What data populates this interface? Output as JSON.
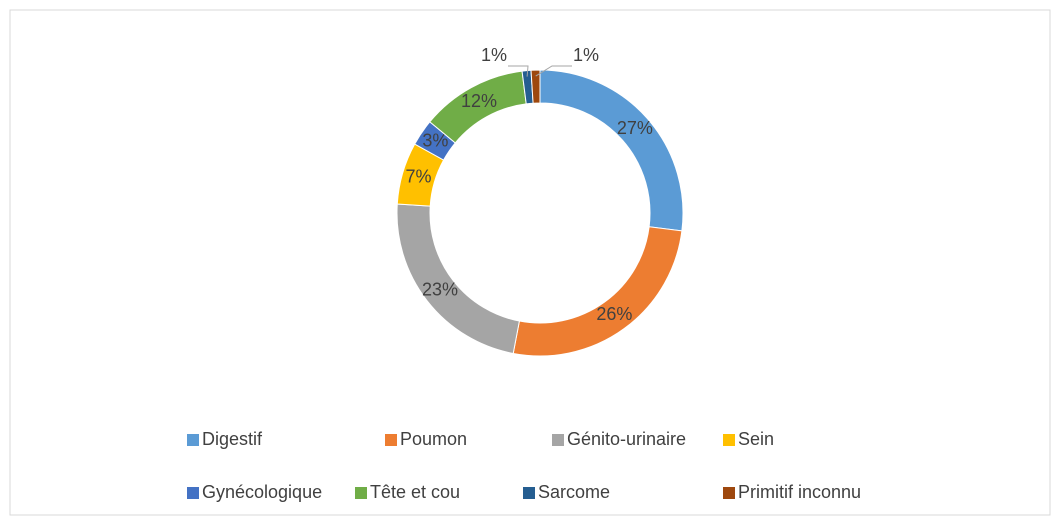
{
  "chart_data": {
    "type": "donut",
    "categories": [
      "Digestif",
      "Poumon",
      "Génito-urinaire",
      "Sein",
      "Gynécologique",
      "Tête et cou",
      "Sarcome",
      "Primitif inconnu"
    ],
    "values": [
      27,
      26,
      23,
      7,
      3,
      12,
      1,
      1
    ],
    "value_labels": [
      "27%",
      "26%",
      "23%",
      "7%",
      "3%",
      "12%",
      "1%",
      "1%"
    ],
    "colors": [
      "#5b9bd5",
      "#ed7d31",
      "#a5a5a5",
      "#ffc000",
      "#4472c4",
      "#70ad47",
      "#255e91",
      "#9e480e"
    ],
    "legend": "bottom"
  }
}
